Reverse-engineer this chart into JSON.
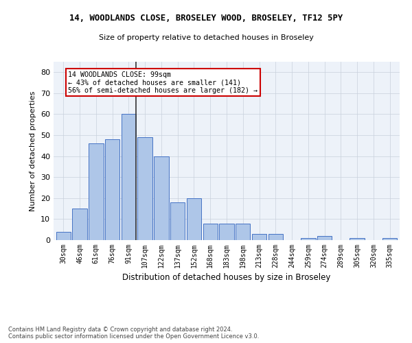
{
  "title_line1": "14, WOODLANDS CLOSE, BROSELEY WOOD, BROSELEY, TF12 5PY",
  "title_line2": "Size of property relative to detached houses in Broseley",
  "xlabel": "Distribution of detached houses by size in Broseley",
  "ylabel": "Number of detached properties",
  "categories": [
    "30sqm",
    "46sqm",
    "61sqm",
    "76sqm",
    "91sqm",
    "107sqm",
    "122sqm",
    "137sqm",
    "152sqm",
    "168sqm",
    "183sqm",
    "198sqm",
    "213sqm",
    "228sqm",
    "244sqm",
    "259sqm",
    "274sqm",
    "289sqm",
    "305sqm",
    "320sqm",
    "335sqm"
  ],
  "values": [
    4,
    15,
    46,
    48,
    60,
    49,
    40,
    18,
    20,
    8,
    8,
    8,
    3,
    3,
    0,
    1,
    2,
    0,
    1,
    0,
    1
  ],
  "bar_color": "#aec6e8",
  "bar_edge_color": "#4472c4",
  "highlight_line_color": "#333333",
  "annotation_text_line1": "14 WOODLANDS CLOSE: 99sqm",
  "annotation_text_line2": "← 43% of detached houses are smaller (141)",
  "annotation_text_line3": "56% of semi-detached houses are larger (182) →",
  "annotation_box_color": "#ffffff",
  "annotation_box_edge_color": "#cc0000",
  "ylim": [
    0,
    85
  ],
  "yticks": [
    0,
    10,
    20,
    30,
    40,
    50,
    60,
    70,
    80
  ],
  "grid_color": "#c8d0dc",
  "background_color": "#edf2f9",
  "footer_line1": "Contains HM Land Registry data © Crown copyright and database right 2024.",
  "footer_line2": "Contains public sector information licensed under the Open Government Licence v3.0."
}
